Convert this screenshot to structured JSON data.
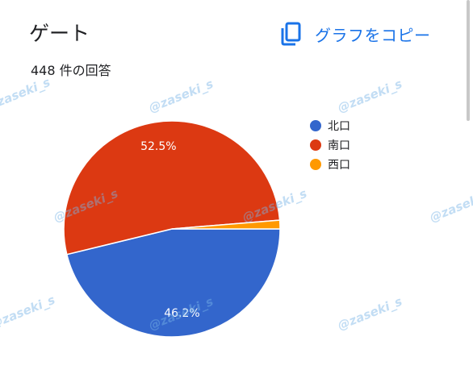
{
  "header": {
    "title": "ゲート",
    "copy_label": "グラフをコピー",
    "response_count": "448 件の回答"
  },
  "chart_data": {
    "type": "pie",
    "title": "ゲート",
    "categories": [
      "北口",
      "南口",
      "西口"
    ],
    "values": [
      46.2,
      52.5,
      1.3
    ],
    "data_labels": [
      "46.2%",
      "52.5%",
      ""
    ],
    "colors": [
      "#3366cc",
      "#dc3912",
      "#ff9900"
    ],
    "legend_position": "right"
  },
  "watermark": {
    "text": "@zaseki_s"
  }
}
